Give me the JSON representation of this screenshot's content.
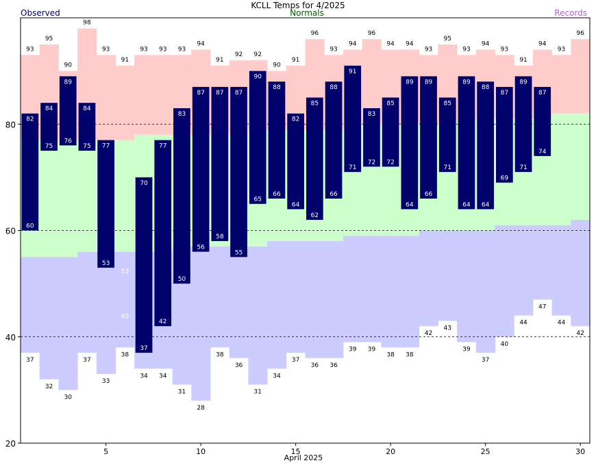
{
  "chart_data": {
    "type": "bar",
    "title": "KCLL Temps for 4/2025",
    "xlabel": "April 2025",
    "ylabel": "",
    "ylim": [
      20,
      100
    ],
    "xlim": [
      0.5,
      30.5
    ],
    "grid": "dashed at 40, 60, 80",
    "legend": [
      {
        "name": "Observed",
        "color": "#00006b",
        "placement": "top-left"
      },
      {
        "name": "Normals",
        "color": "#006400",
        "placement": "top-center"
      },
      {
        "name": "Records",
        "color": "#b266d9",
        "placement": "top-right"
      }
    ],
    "x_ticks": [
      5,
      10,
      15,
      20,
      25,
      30
    ],
    "y_ticks": [
      20,
      40,
      60,
      80
    ],
    "days": [
      1,
      2,
      3,
      4,
      5,
      6,
      7,
      8,
      9,
      10,
      11,
      12,
      13,
      14,
      15,
      16,
      17,
      18,
      19,
      20,
      21,
      22,
      23,
      24,
      25,
      26,
      27,
      28,
      29,
      30
    ],
    "series": [
      {
        "name": "Observed high",
        "values": [
          82,
          84,
          89,
          84,
          77,
          null,
          70,
          77,
          83,
          87,
          87,
          87,
          90,
          88,
          82,
          85,
          88,
          91,
          83,
          85,
          89,
          89,
          85,
          89,
          88,
          87,
          89,
          87,
          null,
          null
        ]
      },
      {
        "name": "Observed low",
        "values": [
          60,
          75,
          76,
          75,
          53,
          43,
          37,
          42,
          50,
          56,
          58,
          55,
          65,
          66,
          64,
          62,
          66,
          71,
          72,
          72,
          64,
          66,
          71,
          64,
          64,
          69,
          71,
          74,
          null,
          null
        ]
      },
      {
        "name": "Record high",
        "values": [
          93,
          95,
          90,
          98,
          93,
          91,
          93,
          93,
          93,
          94,
          91,
          92,
          92,
          90,
          91,
          96,
          93,
          94,
          96,
          94,
          94,
          93,
          95,
          93,
          94,
          93,
          91,
          94,
          93,
          96
        ]
      },
      {
        "name": "Record low",
        "values": [
          37,
          32,
          30,
          37,
          33,
          38,
          34,
          34,
          31,
          28,
          38,
          36,
          31,
          34,
          37,
          36,
          36,
          39,
          39,
          38,
          38,
          42,
          43,
          39,
          37,
          40,
          44,
          47,
          44,
          42
        ]
      },
      {
        "name": "Normal high",
        "values": [
          77,
          77,
          77,
          77,
          77,
          77,
          78,
          78,
          78,
          78,
          78,
          78,
          79,
          79,
          79,
          79,
          79,
          80,
          80,
          80,
          80,
          80,
          80,
          81,
          81,
          81,
          81,
          81,
          82,
          82
        ]
      },
      {
        "name": "Normal low",
        "values": [
          55,
          55,
          55,
          56,
          56,
          56,
          56,
          56,
          57,
          57,
          57,
          57,
          57,
          58,
          58,
          58,
          58,
          59,
          59,
          59,
          59,
          60,
          60,
          60,
          60,
          61,
          61,
          61,
          61,
          62
        ]
      }
    ],
    "value_labels": {
      "extra_low_labels": [
        {
          "day": 6,
          "value": 53
        }
      ]
    }
  }
}
